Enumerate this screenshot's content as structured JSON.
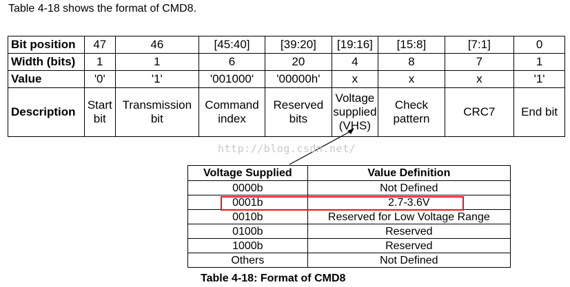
{
  "intro_text": "Table 4-18 shows the format of CMD8.",
  "cmd8": {
    "row_headers": [
      "Bit position",
      "Width (bits)",
      "Value",
      "Description"
    ],
    "bit_position": [
      "47",
      "46",
      "[45:40]",
      "[39:20]",
      "[19:16]",
      "[15:8]",
      "[7:1]",
      "0"
    ],
    "width": [
      "1",
      "1",
      "6",
      "20",
      "4",
      "8",
      "7",
      "1"
    ],
    "value": [
      "'0'",
      "'1'",
      "'001000'",
      "'00000h'",
      "x",
      "x",
      "x",
      "'1'"
    ],
    "description": [
      [
        "Start",
        "bit"
      ],
      [
        "Transmission",
        "bit"
      ],
      [
        "Command",
        "index"
      ],
      [
        "Reserved",
        "bits"
      ],
      [
        "Voltage",
        "supplied",
        "(VHS)"
      ],
      [
        "Check",
        "pattern"
      ],
      [
        "CRC7"
      ],
      [
        "End bit"
      ]
    ]
  },
  "vhs": {
    "headers": [
      "Voltage Supplied",
      "Value Definition"
    ],
    "rows": [
      [
        "0000b",
        "Not Defined"
      ],
      [
        "0001b",
        "2.7-3.6V"
      ],
      [
        "0010b",
        "Reserved for Low Voltage Range"
      ],
      [
        "0100b",
        "Reserved"
      ],
      [
        "1000b",
        "Reserved"
      ],
      [
        "Others",
        "Not Defined"
      ]
    ]
  },
  "watermark": "http://blog.csdn.net/",
  "caption": "Table 4-18: Format of CMD8",
  "colors": {
    "highlight": "#e8141d",
    "watermark": "#c8c8c8"
  }
}
